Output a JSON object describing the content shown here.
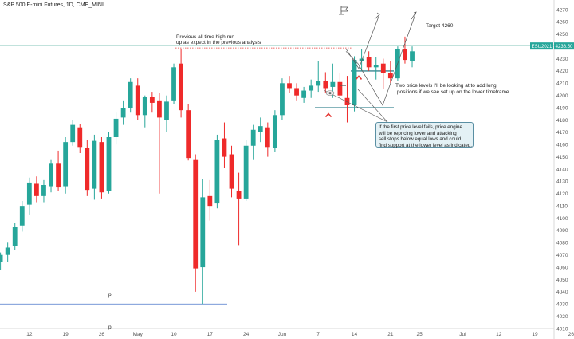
{
  "header": {
    "title": "S&P 500 E-mini Futures, 1D, CME_MINI"
  },
  "price_badge": {
    "symbol": "ESU2021",
    "price": "4236.50",
    "color": "#26a69a"
  },
  "annotations": {
    "ath_line1": "Previous all time high run",
    "ath_line2": "up as expect in the previous analysis",
    "target": "Target 4260",
    "levels_line1": "Two price levels I'll be looking at to add long",
    "levels_line2": "positions if we see set up on the lower timeframe.",
    "box_lines": [
      "If the first price level fails, price engine",
      "will be repricing lower and attacking",
      "sell stops below equal lows and could",
      "find support at the lower level as indicated."
    ],
    "p1": "p",
    "p2": "p"
  },
  "icons": {
    "flag": "flag-icon",
    "eye": "eye-icon",
    "arrow": "caret-up-icon"
  },
  "colors": {
    "up": "#26a69a",
    "down": "#ef2a2a",
    "level": "#0d6b78",
    "target_line": "#2e9e5b",
    "resistance": "#e53935"
  },
  "chart_data": {
    "type": "candlestick",
    "title": "S&P 500 E-mini Futures, 1D, CME_MINI",
    "ylim": [
      4010,
      4270
    ],
    "y_ticks": [
      4010,
      4020,
      4030,
      4040,
      4050,
      4060,
      4070,
      4080,
      4090,
      4100,
      4110,
      4120,
      4130,
      4140,
      4150,
      4160,
      4170,
      4180,
      4190,
      4200,
      4210,
      4220,
      4230,
      4240,
      4250,
      4260,
      4270
    ],
    "x_ticks": [
      {
        "label": "12",
        "i": 4
      },
      {
        "label": "19",
        "i": 9
      },
      {
        "label": "26",
        "i": 14
      },
      {
        "label": "May",
        "i": 19
      },
      {
        "label": "10",
        "i": 24
      },
      {
        "label": "17",
        "i": 29
      },
      {
        "label": "24",
        "i": 34
      },
      {
        "label": "Jun",
        "i": 39
      },
      {
        "label": "7",
        "i": 44
      },
      {
        "label": "14",
        "i": 49
      },
      {
        "label": "21",
        "i": 54
      },
      {
        "label": "25",
        "i": 58
      },
      {
        "label": "Jul",
        "i": 64
      },
      {
        "label": "12",
        "i": 69
      },
      {
        "label": "19",
        "i": 74
      },
      {
        "label": "26",
        "i": 79
      }
    ],
    "candles": [
      {
        "o": 4064,
        "h": 4072,
        "l": 4058,
        "c": 4070
      },
      {
        "o": 4070,
        "h": 4080,
        "l": 4064,
        "c": 4076
      },
      {
        "o": 4077,
        "h": 4096,
        "l": 4074,
        "c": 4093
      },
      {
        "o": 4094,
        "h": 4114,
        "l": 4089,
        "c": 4110
      },
      {
        "o": 4111,
        "h": 4133,
        "l": 4103,
        "c": 4129
      },
      {
        "o": 4128,
        "h": 4134,
        "l": 4113,
        "c": 4118
      },
      {
        "o": 4118,
        "h": 4131,
        "l": 4113,
        "c": 4127
      },
      {
        "o": 4126,
        "h": 4148,
        "l": 4121,
        "c": 4145
      },
      {
        "o": 4145,
        "h": 4155,
        "l": 4122,
        "c": 4125
      },
      {
        "o": 4126,
        "h": 4166,
        "l": 4120,
        "c": 4162
      },
      {
        "o": 4162,
        "h": 4180,
        "l": 4159,
        "c": 4176
      },
      {
        "o": 4174,
        "h": 4177,
        "l": 4153,
        "c": 4158
      },
      {
        "o": 4157,
        "h": 4164,
        "l": 4118,
        "c": 4123
      },
      {
        "o": 4124,
        "h": 4168,
        "l": 4115,
        "c": 4163
      },
      {
        "o": 4162,
        "h": 4166,
        "l": 4116,
        "c": 4121
      },
      {
        "o": 4122,
        "h": 4170,
        "l": 4120,
        "c": 4166
      },
      {
        "o": 4166,
        "h": 4186,
        "l": 4160,
        "c": 4181
      },
      {
        "o": 4182,
        "h": 4196,
        "l": 4176,
        "c": 4190
      },
      {
        "o": 4190,
        "h": 4214,
        "l": 4186,
        "c": 4211
      },
      {
        "o": 4208,
        "h": 4214,
        "l": 4180,
        "c": 4184
      },
      {
        "o": 4184,
        "h": 4200,
        "l": 4174,
        "c": 4199
      },
      {
        "o": 4199,
        "h": 4203,
        "l": 4186,
        "c": 4194
      },
      {
        "o": 4196,
        "h": 4202,
        "l": 4120,
        "c": 4182
      },
      {
        "o": 4180,
        "h": 4200,
        "l": 4170,
        "c": 4195
      },
      {
        "o": 4196,
        "h": 4226,
        "l": 4193,
        "c": 4223
      },
      {
        "o": 4226,
        "h": 4238,
        "l": 4182,
        "c": 4188
      },
      {
        "o": 4188,
        "h": 4193,
        "l": 4147,
        "c": 4149
      },
      {
        "o": 4148,
        "h": 4152,
        "l": 4040,
        "c": 4059
      },
      {
        "o": 4060,
        "h": 4132,
        "l": 4030,
        "c": 4117
      },
      {
        "o": 4118,
        "h": 4131,
        "l": 4098,
        "c": 4110
      },
      {
        "o": 4112,
        "h": 4168,
        "l": 4108,
        "c": 4164
      },
      {
        "o": 4165,
        "h": 4178,
        "l": 4141,
        "c": 4150
      },
      {
        "o": 4152,
        "h": 4159,
        "l": 4117,
        "c": 4124
      },
      {
        "o": 4122,
        "h": 4137,
        "l": 4078,
        "c": 4116
      },
      {
        "o": 4116,
        "h": 4164,
        "l": 4114,
        "c": 4159
      },
      {
        "o": 4159,
        "h": 4176,
        "l": 4148,
        "c": 4172
      },
      {
        "o": 4170,
        "h": 4182,
        "l": 4162,
        "c": 4175
      },
      {
        "o": 4174,
        "h": 4178,
        "l": 4150,
        "c": 4158
      },
      {
        "o": 4157,
        "h": 4188,
        "l": 4154,
        "c": 4184
      },
      {
        "o": 4184,
        "h": 4214,
        "l": 4180,
        "c": 4210
      },
      {
        "o": 4210,
        "h": 4216,
        "l": 4202,
        "c": 4206
      },
      {
        "o": 4206,
        "h": 4210,
        "l": 4196,
        "c": 4200
      },
      {
        "o": 4198,
        "h": 4207,
        "l": 4194,
        "c": 4204
      },
      {
        "o": 4204,
        "h": 4213,
        "l": 4198,
        "c": 4208
      },
      {
        "o": 4208,
        "h": 4228,
        "l": 4203,
        "c": 4212
      },
      {
        "o": 4212,
        "h": 4219,
        "l": 4202,
        "c": 4206
      },
      {
        "o": 4207,
        "h": 4226,
        "l": 4198,
        "c": 4211
      },
      {
        "o": 4211,
        "h": 4218,
        "l": 4198,
        "c": 4200
      },
      {
        "o": 4198,
        "h": 4216,
        "l": 4178,
        "c": 4192
      },
      {
        "o": 4192,
        "h": 4232,
        "l": 4187,
        "c": 4229
      },
      {
        "o": 4228,
        "h": 4238,
        "l": 4220,
        "c": 4230
      },
      {
        "o": 4231,
        "h": 4236,
        "l": 4220,
        "c": 4223
      },
      {
        "o": 4223,
        "h": 4231,
        "l": 4213,
        "c": 4225
      },
      {
        "o": 4226,
        "h": 4230,
        "l": 4205,
        "c": 4218
      },
      {
        "o": 4218,
        "h": 4228,
        "l": 4210,
        "c": 4214
      },
      {
        "o": 4214,
        "h": 4240,
        "l": 4212,
        "c": 4238
      },
      {
        "o": 4238,
        "h": 4248,
        "l": 4226,
        "c": 4229
      },
      {
        "o": 4228,
        "h": 4240,
        "l": 4223,
        "c": 4236
      }
    ],
    "levels": {
      "target": 4260,
      "prev_high": 4240,
      "upper_support": 4220,
      "lower_support": 4190,
      "low_p": 4030,
      "low_p2": 4010
    }
  }
}
